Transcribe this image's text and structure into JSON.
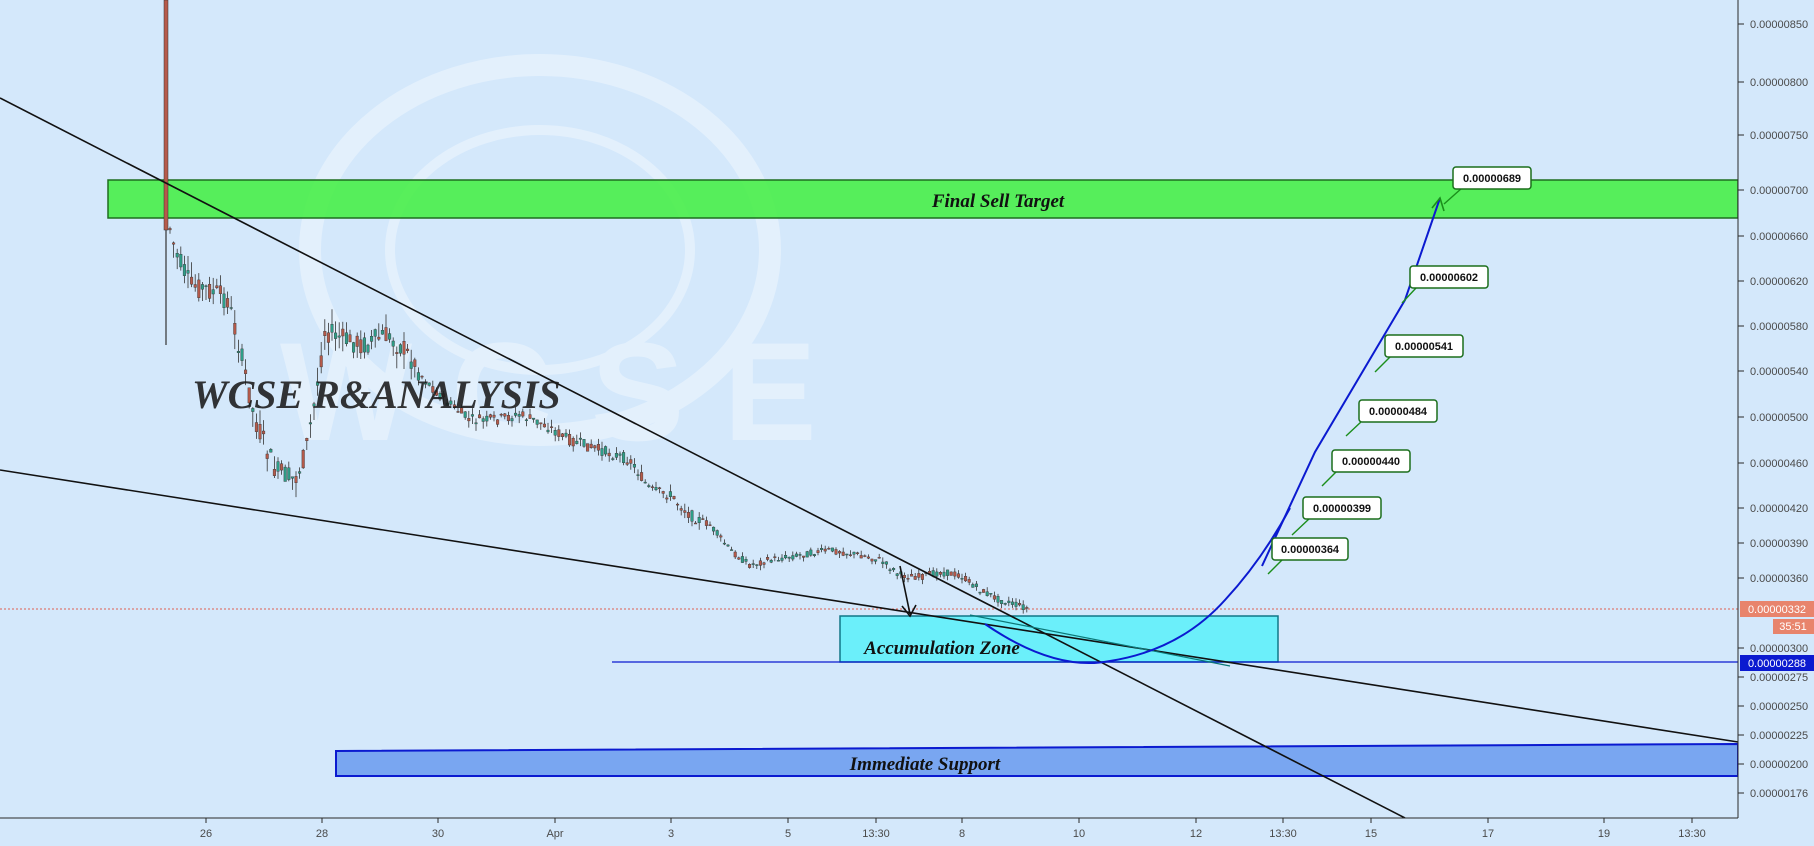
{
  "chart_data": {
    "type": "candlestick",
    "watermark": "WCSE R&ANALYSIS",
    "y_axis": {
      "ticks": [
        "0.00000850",
        "0.00000800",
        "0.00000750",
        "0.00000700",
        "0.00000660",
        "0.00000620",
        "0.00000580",
        "0.00000540",
        "0.00000500",
        "0.00000460",
        "0.00000420",
        "0.00000390",
        "0.00000360",
        "0.00000300",
        "0.00000275",
        "0.00000250",
        "0.00000225",
        "0.00000200",
        "0.00000176"
      ],
      "scale": "log"
    },
    "x_axis": {
      "ticks": [
        "26",
        "28",
        "30",
        "Apr",
        "3",
        "5",
        "13:30",
        "8",
        "10",
        "12",
        "13:30",
        "15",
        "17",
        "19",
        "13:30"
      ]
    },
    "price_labels": {
      "last": "0.00000332",
      "countdown": "35:51",
      "support_line": "0.00000288"
    },
    "zones": [
      {
        "label": "Final Sell Target",
        "from": 6.74e-06,
        "to": 7.12e-06,
        "color": "#44ee44"
      },
      {
        "label": "Accumulation Zone",
        "from": 2.88e-06,
        "to": 3.26e-06,
        "color": "#5ff0fa"
      },
      {
        "label": "Immediate Support",
        "from": 1.9e-06,
        "to": 2.12e-06,
        "color": "#6f9ef0"
      }
    ],
    "targets": [
      "0.00000364",
      "0.00000399",
      "0.00000440",
      "0.00000484",
      "0.00000541",
      "0.00000602",
      "0.00000689"
    ],
    "colors": {
      "up": "#2e9e88",
      "down": "#b65a4a",
      "projection": "#0b1ad0",
      "trendline": "#111111",
      "callout_border": "#1b6e1b"
    }
  }
}
